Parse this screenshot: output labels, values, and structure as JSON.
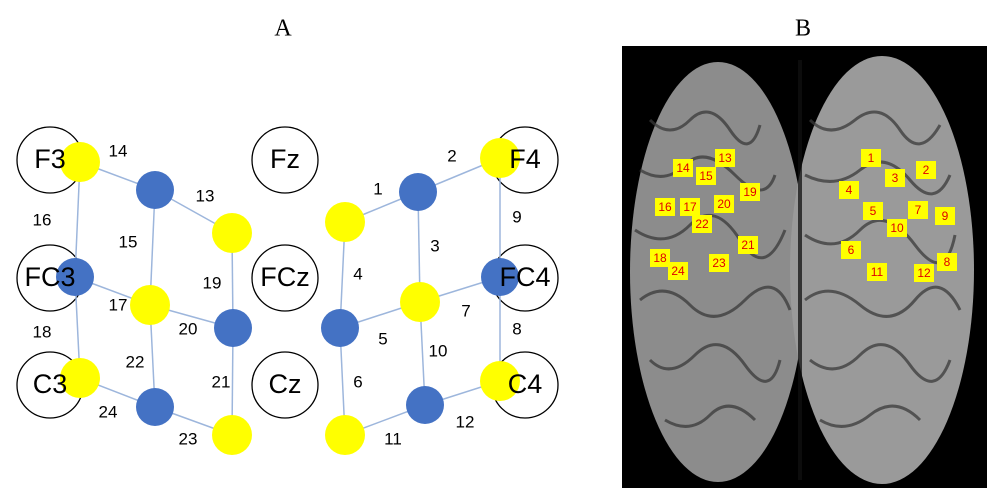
{
  "panels": [
    {
      "label": "A",
      "electrodes": [
        "F3",
        "Fz",
        "F4",
        "FC3",
        "FCz",
        "FC4",
        "C3",
        "Cz",
        "C4"
      ],
      "channels": [
        "1",
        "2",
        "3",
        "4",
        "5",
        "6",
        "7",
        "8",
        "9",
        "10",
        "11",
        "12",
        "13",
        "14",
        "15",
        "16",
        "17",
        "18",
        "19",
        "20",
        "21",
        "22",
        "23",
        "24"
      ]
    },
    {
      "label": "B",
      "channels": [
        "1",
        "2",
        "3",
        "4",
        "5",
        "6",
        "7",
        "8",
        "9",
        "10",
        "11",
        "12",
        "13",
        "14",
        "15",
        "16",
        "17",
        "18",
        "19",
        "20",
        "21",
        "22",
        "23",
        "24"
      ]
    }
  ]
}
